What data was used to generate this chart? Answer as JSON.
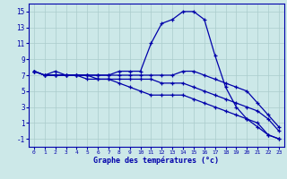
{
  "xlabel": "Graphe des températures (°c)",
  "background_color": "#cce8e8",
  "grid_color": "#aacccc",
  "line_color": "#0000aa",
  "x": [
    0,
    1,
    2,
    3,
    4,
    5,
    6,
    7,
    8,
    9,
    10,
    11,
    12,
    13,
    14,
    15,
    16,
    17,
    18,
    19,
    20,
    21,
    22,
    23
  ],
  "line1": [
    7.5,
    7.0,
    7.5,
    7.0,
    7.0,
    7.0,
    7.0,
    7.0,
    7.5,
    7.5,
    7.5,
    11.0,
    13.5,
    14.0,
    15.0,
    15.0,
    14.0,
    9.5,
    5.5,
    3.0,
    1.5,
    1.0,
    -0.5,
    -1.0
  ],
  "line2": [
    7.5,
    7.0,
    7.0,
    7.0,
    7.0,
    7.0,
    7.0,
    7.0,
    7.0,
    7.0,
    7.0,
    7.0,
    7.0,
    7.0,
    7.5,
    7.5,
    7.0,
    6.5,
    6.0,
    5.5,
    5.0,
    3.5,
    2.0,
    0.5
  ],
  "line3": [
    7.5,
    7.0,
    7.0,
    7.0,
    7.0,
    7.0,
    6.5,
    6.5,
    6.5,
    6.5,
    6.5,
    6.5,
    6.0,
    6.0,
    6.0,
    5.5,
    5.0,
    4.5,
    4.0,
    3.5,
    3.0,
    2.5,
    1.5,
    0.0
  ],
  "line4": [
    7.5,
    7.0,
    7.0,
    7.0,
    7.0,
    6.5,
    6.5,
    6.5,
    6.0,
    5.5,
    5.0,
    4.5,
    4.5,
    4.5,
    4.5,
    4.0,
    3.5,
    3.0,
    2.5,
    2.0,
    1.5,
    0.5,
    -0.5,
    -1.0
  ],
  "ylim": [
    -2,
    16
  ],
  "xlim": [
    -0.5,
    23.5
  ],
  "yticks": [
    -1,
    1,
    3,
    5,
    7,
    9,
    11,
    13,
    15
  ],
  "xticks": [
    0,
    1,
    2,
    3,
    4,
    5,
    6,
    7,
    8,
    9,
    10,
    11,
    12,
    13,
    14,
    15,
    16,
    17,
    18,
    19,
    20,
    21,
    22,
    23
  ]
}
